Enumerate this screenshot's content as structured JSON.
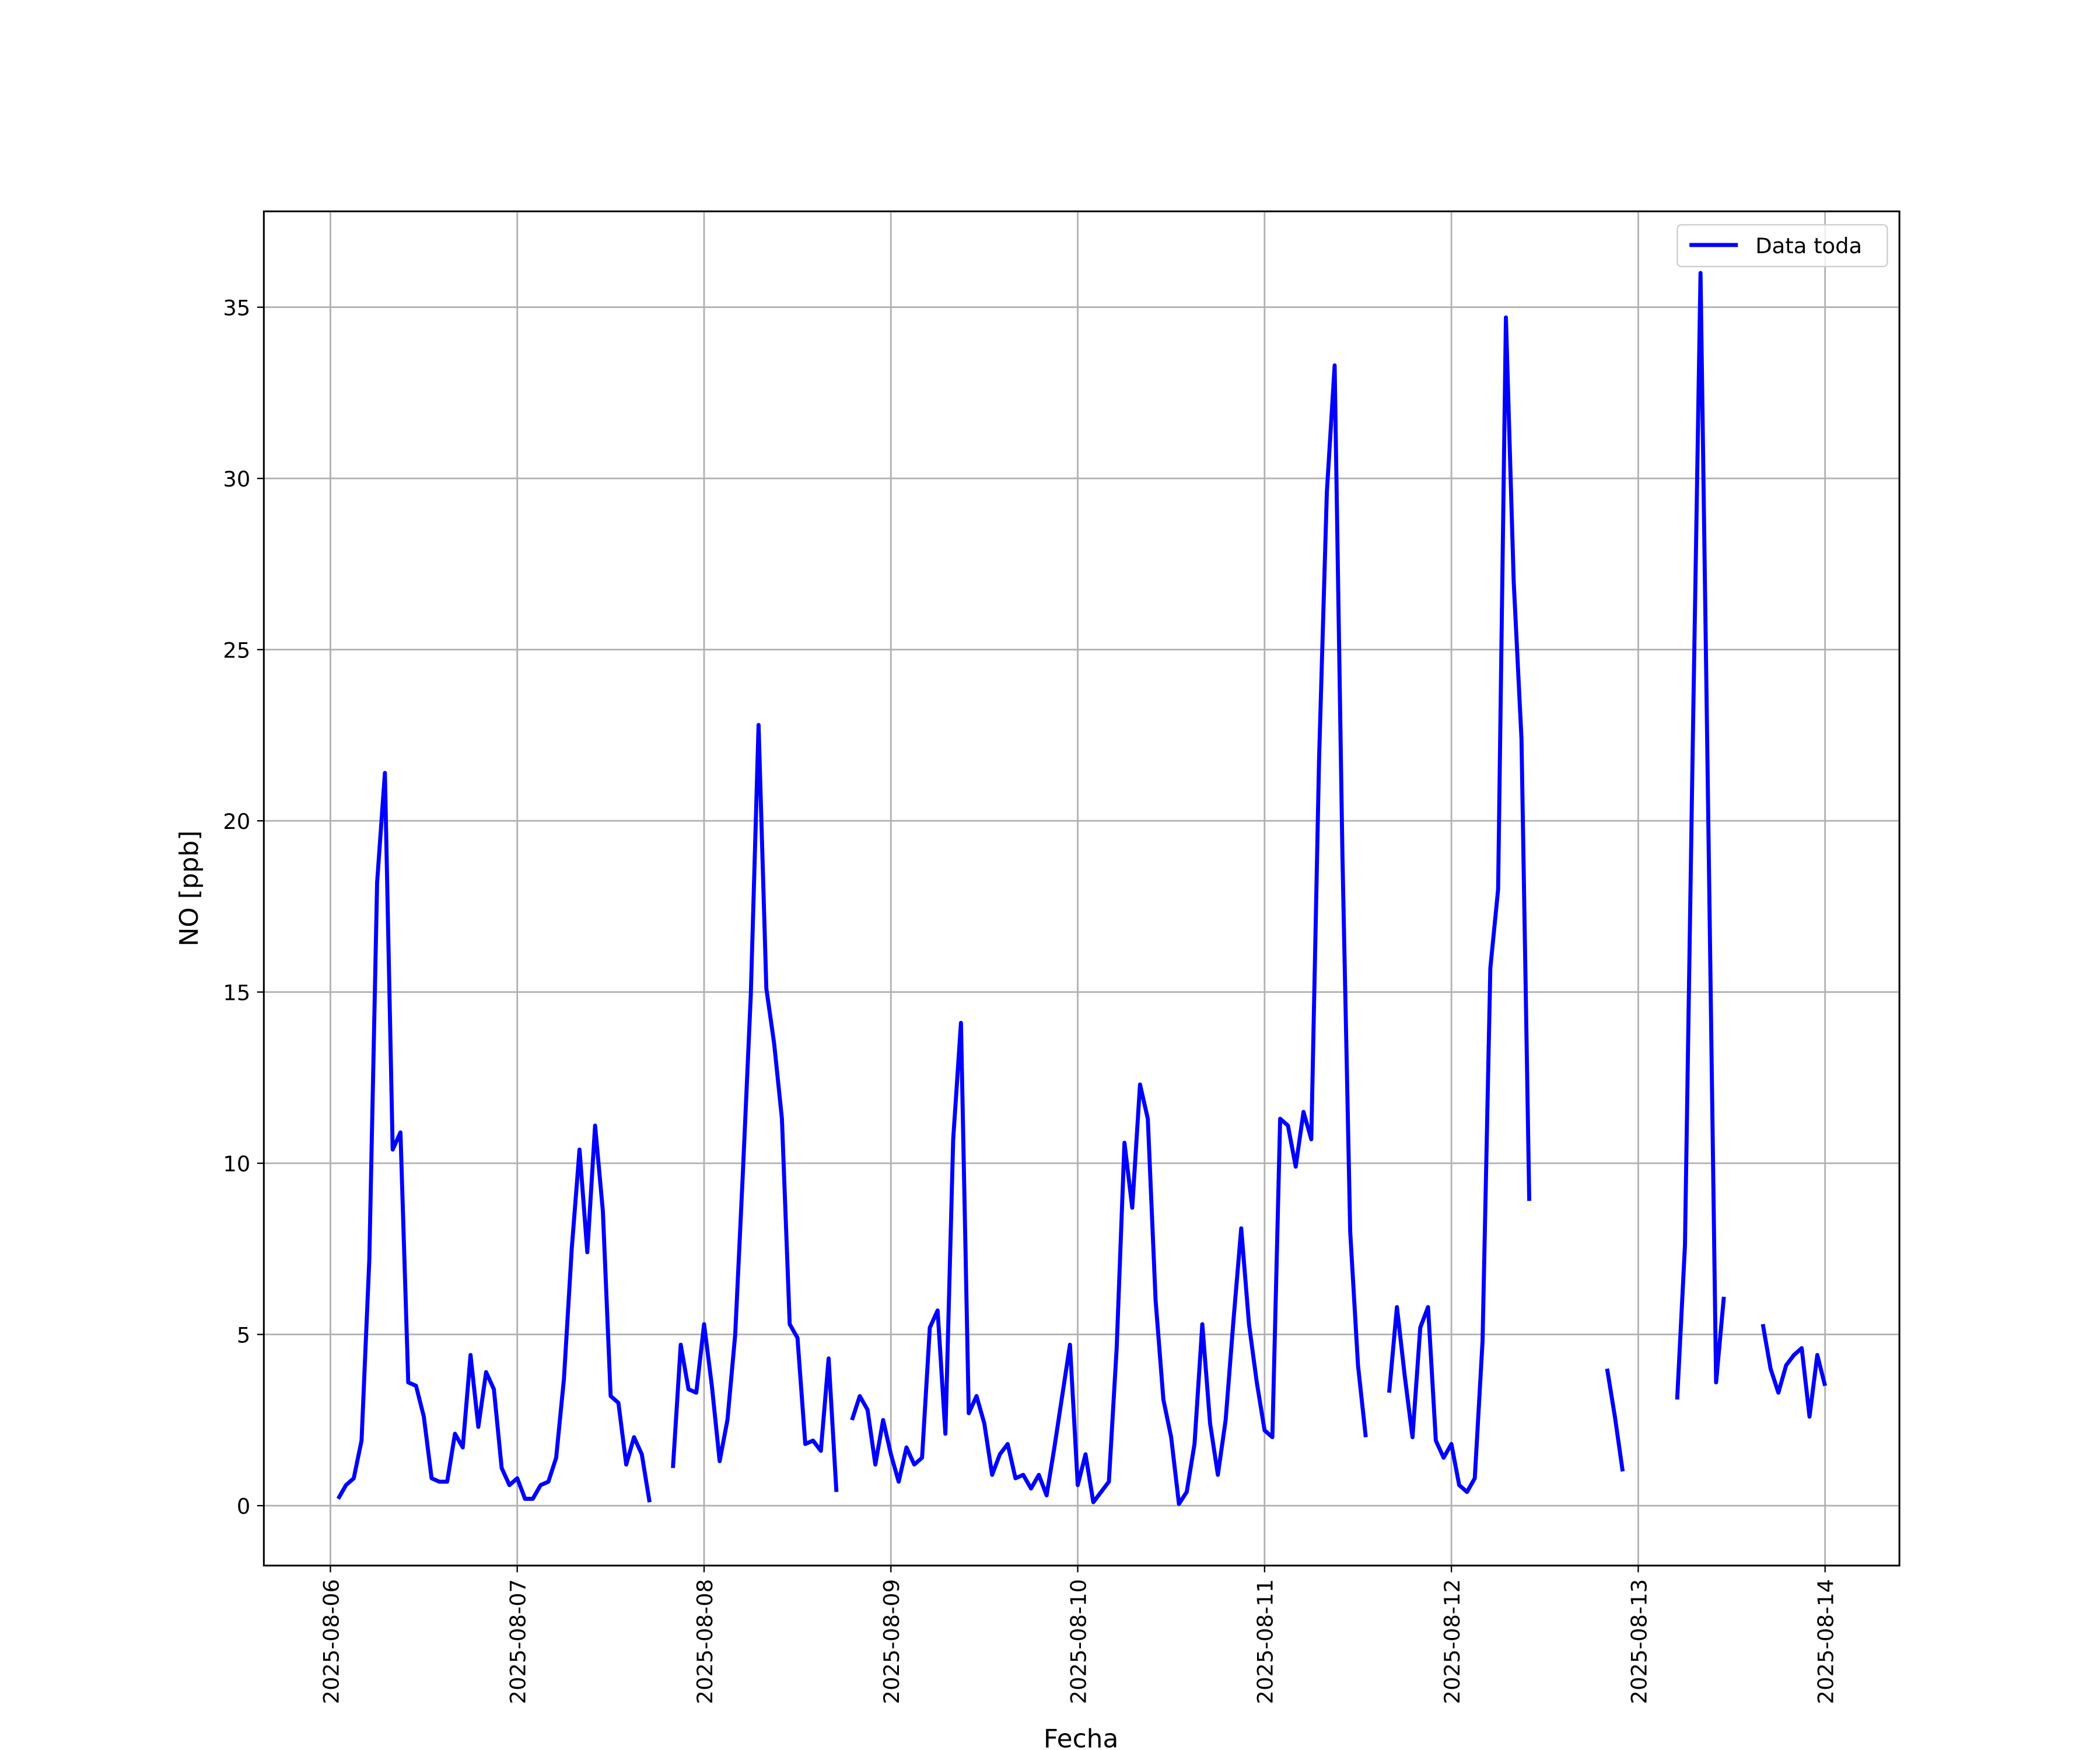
{
  "chart_data": {
    "type": "line",
    "x_label": "Fecha",
    "y_label": "NO [ppb]",
    "x": [
      "2025-08-06 01:00",
      "2025-08-06 02:00",
      "2025-08-06 03:00",
      "2025-08-06 04:00",
      "2025-08-06 05:00",
      "2025-08-06 06:00",
      "2025-08-06 07:00",
      "2025-08-06 08:00",
      "2025-08-06 09:00",
      "2025-08-06 10:00",
      "2025-08-06 11:00",
      "2025-08-06 12:00",
      "2025-08-06 13:00",
      "2025-08-06 14:00",
      "2025-08-06 15:00",
      "2025-08-06 16:00",
      "2025-08-06 17:00",
      "2025-08-06 18:00",
      "2025-08-06 19:00",
      "2025-08-06 20:00",
      "2025-08-06 21:00",
      "2025-08-06 22:00",
      "2025-08-06 23:00",
      "2025-08-07 00:00",
      "2025-08-07 01:00",
      "2025-08-07 02:00",
      "2025-08-07 03:00",
      "2025-08-07 04:00",
      "2025-08-07 05:00",
      "2025-08-07 06:00",
      "2025-08-07 07:00",
      "2025-08-07 08:00",
      "2025-08-07 09:00",
      "2025-08-07 10:00",
      "2025-08-07 11:00",
      "2025-08-07 12:00",
      "2025-08-07 13:00",
      "2025-08-07 14:00",
      "2025-08-07 15:00",
      "2025-08-07 16:00",
      "2025-08-07 17:00",
      "2025-08-07 18:00",
      "2025-08-07 19:00",
      "2025-08-07 20:00",
      "2025-08-07 21:00",
      "2025-08-07 22:00",
      "2025-08-07 23:00",
      "2025-08-08 00:00",
      "2025-08-08 01:00",
      "2025-08-08 02:00",
      "2025-08-08 03:00",
      "2025-08-08 04:00",
      "2025-08-08 05:00",
      "2025-08-08 06:00",
      "2025-08-08 07:00",
      "2025-08-08 08:00",
      "2025-08-08 09:00",
      "2025-08-08 10:00",
      "2025-08-08 11:00",
      "2025-08-08 12:00",
      "2025-08-08 13:00",
      "2025-08-08 14:00",
      "2025-08-08 15:00",
      "2025-08-08 16:00",
      "2025-08-08 17:00",
      "2025-08-08 18:00",
      "2025-08-08 19:00",
      "2025-08-08 20:00",
      "2025-08-08 21:00",
      "2025-08-08 22:00",
      "2025-08-08 23:00",
      "2025-08-09 00:00",
      "2025-08-09 01:00",
      "2025-08-09 02:00",
      "2025-08-09 03:00",
      "2025-08-09 04:00",
      "2025-08-09 05:00",
      "2025-08-09 06:00",
      "2025-08-09 07:00",
      "2025-08-09 08:00",
      "2025-08-09 09:00",
      "2025-08-09 10:00",
      "2025-08-09 11:00",
      "2025-08-09 12:00",
      "2025-08-09 13:00",
      "2025-08-09 14:00",
      "2025-08-09 15:00",
      "2025-08-09 16:00",
      "2025-08-09 17:00",
      "2025-08-09 18:00",
      "2025-08-09 19:00",
      "2025-08-09 20:00",
      "2025-08-09 21:00",
      "2025-08-09 22:00",
      "2025-08-09 23:00",
      "2025-08-10 00:00",
      "2025-08-10 01:00",
      "2025-08-10 02:00",
      "2025-08-10 03:00",
      "2025-08-10 04:00",
      "2025-08-10 05:00",
      "2025-08-10 06:00",
      "2025-08-10 07:00",
      "2025-08-10 08:00",
      "2025-08-10 09:00",
      "2025-08-10 10:00",
      "2025-08-10 11:00",
      "2025-08-10 12:00",
      "2025-08-10 13:00",
      "2025-08-10 14:00",
      "2025-08-10 15:00",
      "2025-08-10 16:00",
      "2025-08-10 17:00",
      "2025-08-10 18:00",
      "2025-08-10 19:00",
      "2025-08-10 20:00",
      "2025-08-10 21:00",
      "2025-08-10 22:00",
      "2025-08-10 23:00",
      "2025-08-11 00:00",
      "2025-08-11 01:00",
      "2025-08-11 02:00",
      "2025-08-11 03:00",
      "2025-08-11 04:00",
      "2025-08-11 05:00",
      "2025-08-11 06:00",
      "2025-08-11 07:00",
      "2025-08-11 08:00",
      "2025-08-11 09:00",
      "2025-08-11 10:00",
      "2025-08-11 11:00",
      "2025-08-11 12:00",
      "2025-08-11 13:00",
      "2025-08-11 14:00",
      "2025-08-11 15:00",
      "2025-08-11 16:00",
      "2025-08-11 17:00",
      "2025-08-11 18:00",
      "2025-08-11 19:00",
      "2025-08-11 20:00",
      "2025-08-11 21:00",
      "2025-08-11 22:00",
      "2025-08-11 23:00",
      "2025-08-12 00:00",
      "2025-08-12 01:00",
      "2025-08-12 02:00",
      "2025-08-12 03:00",
      "2025-08-12 04:00",
      "2025-08-12 05:00",
      "2025-08-12 06:00",
      "2025-08-12 07:00",
      "2025-08-12 08:00",
      "2025-08-12 09:00",
      "2025-08-12 10:00",
      "2025-08-12 11:00",
      "2025-08-12 12:00",
      "2025-08-12 13:00",
      "2025-08-12 14:00",
      "2025-08-12 15:00",
      "2025-08-12 16:00",
      "2025-08-12 17:00",
      "2025-08-12 18:00",
      "2025-08-12 19:00",
      "2025-08-12 20:00",
      "2025-08-12 21:00",
      "2025-08-12 22:00",
      "2025-08-12 23:00",
      "2025-08-13 00:00",
      "2025-08-13 01:00",
      "2025-08-13 02:00",
      "2025-08-13 03:00",
      "2025-08-13 04:00",
      "2025-08-13 05:00",
      "2025-08-13 06:00",
      "2025-08-13 07:00",
      "2025-08-13 08:00",
      "2025-08-13 09:00",
      "2025-08-13 10:00",
      "2025-08-13 11:00",
      "2025-08-13 12:00",
      "2025-08-13 13:00",
      "2025-08-13 14:00",
      "2025-08-13 15:00",
      "2025-08-13 16:00",
      "2025-08-13 17:00",
      "2025-08-13 18:00",
      "2025-08-13 19:00",
      "2025-08-13 20:00",
      "2025-08-13 21:00",
      "2025-08-13 22:00",
      "2025-08-13 23:00",
      "2025-08-14 00:00"
    ],
    "series": [
      {
        "name": "Data toda",
        "color": "#0000ff",
        "values": [
          0.2,
          0.6,
          0.8,
          1.9,
          7.2,
          18.2,
          21.4,
          10.4,
          10.9,
          3.6,
          3.5,
          2.6,
          0.8,
          0.7,
          0.7,
          2.1,
          1.7,
          4.4,
          2.3,
          3.9,
          3.4,
          1.1,
          0.6,
          0.8,
          0.2,
          0.2,
          0.6,
          0.7,
          1.4,
          3.7,
          7.5,
          10.4,
          7.4,
          11.1,
          8.6,
          3.2,
          3.0,
          1.2,
          2.0,
          1.5,
          0.1,
          null,
          null,
          1.1,
          4.7,
          3.4,
          3.3,
          5.3,
          3.5,
          1.3,
          2.5,
          5.0,
          9.8,
          14.9,
          22.8,
          15.1,
          13.5,
          11.3,
          5.3,
          4.9,
          1.8,
          1.9,
          1.6,
          4.3,
          0.4,
          null,
          2.5,
          3.2,
          2.8,
          1.2,
          2.5,
          1.5,
          0.7,
          1.7,
          1.2,
          1.4,
          5.2,
          5.7,
          2.1,
          10.7,
          14.1,
          2.7,
          3.2,
          2.4,
          0.9,
          1.5,
          1.8,
          0.8,
          0.9,
          0.5,
          0.9,
          0.3,
          1.7,
          3.2,
          4.7,
          0.6,
          1.5,
          0.1,
          0.4,
          0.7,
          4.6,
          10.6,
          8.7,
          12.3,
          11.3,
          6.0,
          3.1,
          2.0,
          0.05,
          0.4,
          1.8,
          5.3,
          2.4,
          0.9,
          2.5,
          5.4,
          8.1,
          5.3,
          3.6,
          2.2,
          2.0,
          11.3,
          11.1,
          9.9,
          11.5,
          10.7,
          21.8,
          29.6,
          33.3,
          19.0,
          8.0,
          4.1,
          2.0,
          null,
          null,
          3.3,
          5.8,
          3.8,
          2.0,
          5.2,
          5.8,
          1.9,
          1.4,
          1.8,
          0.6,
          0.4,
          0.8,
          4.8,
          15.7,
          18.0,
          34.7,
          27.0,
          22.4,
          8.9,
          null,
          null,
          null,
          null,
          null,
          null,
          null,
          null,
          null,
          4.0,
          2.6,
          1.0,
          null,
          null,
          null,
          null,
          null,
          null,
          3.1,
          7.6,
          22.2,
          36.0,
          20.0,
          3.6,
          6.1,
          null,
          null,
          null,
          null,
          5.3,
          4.0,
          3.3,
          4.1,
          4.4,
          4.6,
          2.6,
          4.4,
          3.5
        ]
      }
    ],
    "xlim": [
      "2025-08-05 15:27",
      "2025-08-14 09:33"
    ],
    "xticks": [
      "2025-08-06",
      "2025-08-07",
      "2025-08-08",
      "2025-08-09",
      "2025-08-10",
      "2025-08-11",
      "2025-08-12",
      "2025-08-13",
      "2025-08-14"
    ],
    "ylim": [
      -1.75,
      37.8
    ],
    "yticks": [
      0,
      5,
      10,
      15,
      20,
      25,
      30,
      35
    ],
    "grid": true,
    "legend": "upper right"
  }
}
